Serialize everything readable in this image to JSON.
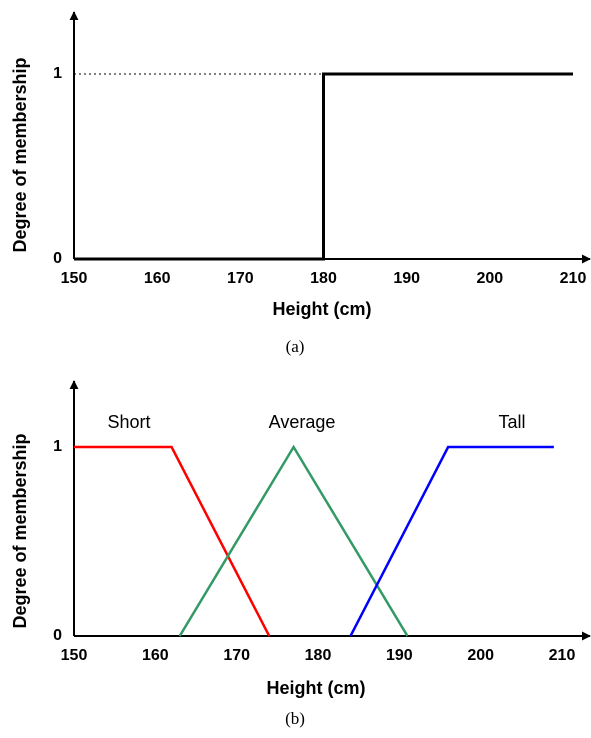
{
  "chart_data": [
    {
      "type": "line",
      "caption": "(a)",
      "xlabel": "Height (cm)",
      "ylabel": "Degree of membership",
      "xlim": [
        150,
        210
      ],
      "ylim": [
        0,
        1
      ],
      "xticks": [
        "150",
        "160",
        "170",
        "180",
        "190",
        "200",
        "210"
      ],
      "yticks": [
        "0",
        "1"
      ],
      "grid": false,
      "series": [
        {
          "color": "#000000",
          "x": [
            150,
            180,
            180,
            210
          ],
          "y": [
            0,
            0,
            1,
            1
          ]
        }
      ],
      "reference_line": {
        "style": "dotted",
        "x": [
          150,
          180
        ],
        "y": [
          1,
          1
        ]
      }
    },
    {
      "type": "line",
      "caption": "(b)",
      "xlabel": "Height (cm)",
      "ylabel": "Degree of membership",
      "xlim": [
        150,
        210
      ],
      "ylim": [
        0,
        1
      ],
      "xticks": [
        "150",
        "160",
        "170",
        "180",
        "190",
        "200",
        "210"
      ],
      "yticks": [
        "0",
        "1"
      ],
      "grid": false,
      "series": [
        {
          "name": "Short",
          "color": "#ff0000",
          "x": [
            150,
            162,
            174
          ],
          "y": [
            1,
            1,
            0
          ]
        },
        {
          "name": "Average",
          "color": "#339966",
          "x": [
            163,
            177,
            191
          ],
          "y": [
            0,
            1,
            0
          ]
        },
        {
          "name": "Tall",
          "color": "#0000ff",
          "x": [
            184,
            196,
            209
          ],
          "y": [
            0,
            1,
            1
          ]
        }
      ]
    }
  ]
}
